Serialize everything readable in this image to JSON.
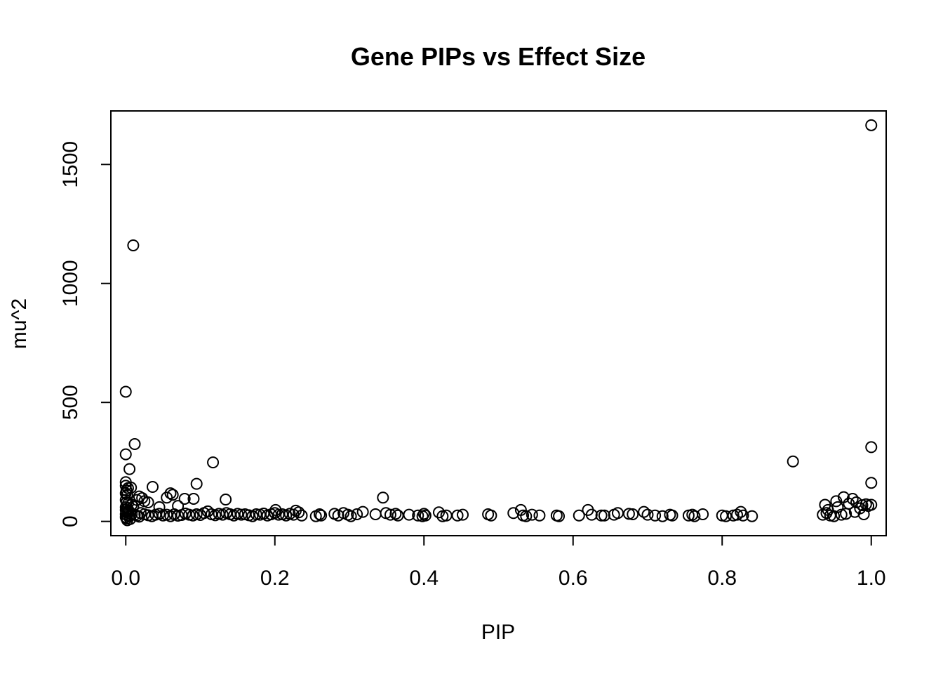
{
  "chart_data": {
    "type": "scatter",
    "title": "Gene PIPs vs Effect Size",
    "xlabel": "PIP",
    "ylabel": "mu^2",
    "xlim": [
      -0.02,
      1.02
    ],
    "ylim": [
      -60,
      1725
    ],
    "x_ticks": [
      {
        "value": 0.0,
        "label": "0.0"
      },
      {
        "value": 0.2,
        "label": "0.2"
      },
      {
        "value": 0.4,
        "label": "0.4"
      },
      {
        "value": 0.6,
        "label": "0.6"
      },
      {
        "value": 0.8,
        "label": "0.8"
      },
      {
        "value": 1.0,
        "label": "1.0"
      }
    ],
    "y_ticks": [
      {
        "value": 0,
        "label": "0"
      },
      {
        "value": 500,
        "label": "500"
      },
      {
        "value": 1000,
        "label": "1000"
      },
      {
        "value": 1500,
        "label": "1500"
      }
    ],
    "grid": false,
    "legend": "none",
    "marker": "open-circle",
    "points": [
      [
        0.0,
        545
      ],
      [
        0.01,
        1160
      ],
      [
        0.0,
        282
      ],
      [
        0.012,
        325
      ],
      [
        0.005,
        220
      ],
      [
        0.117,
        248
      ],
      [
        0.0,
        165
      ],
      [
        0.0,
        150
      ],
      [
        0.003,
        140
      ],
      [
        0.007,
        142
      ],
      [
        0.001,
        130
      ],
      [
        0.0,
        118
      ],
      [
        0.002,
        112
      ],
      [
        0.036,
        145
      ],
      [
        0.095,
        158
      ],
      [
        0.06,
        118
      ],
      [
        0.063,
        112
      ],
      [
        0.055,
        100
      ],
      [
        0.018,
        105
      ],
      [
        0.022,
        98
      ],
      [
        0.079,
        95
      ],
      [
        0.091,
        95
      ],
      [
        0.134,
        92
      ],
      [
        0.015,
        90
      ],
      [
        0.025,
        85
      ],
      [
        0.0,
        90
      ],
      [
        0.001,
        80
      ],
      [
        0.003,
        75
      ],
      [
        0.03,
        80
      ],
      [
        0.045,
        60
      ],
      [
        0.07,
        65
      ],
      [
        0.008,
        70
      ],
      [
        0.01,
        62
      ],
      [
        0.0,
        60
      ],
      [
        0.002,
        55
      ],
      [
        0.0,
        48
      ],
      [
        0.004,
        45
      ],
      [
        0.001,
        40
      ],
      [
        0.003,
        35
      ],
      [
        0.0,
        30
      ],
      [
        0.002,
        25
      ],
      [
        0.005,
        22
      ],
      [
        0.0,
        18
      ],
      [
        0.001,
        12
      ],
      [
        0.006,
        10
      ],
      [
        0.002,
        5
      ],
      [
        0.008,
        30
      ],
      [
        0.012,
        28
      ],
      [
        0.015,
        24
      ],
      [
        0.018,
        20
      ],
      [
        0.02,
        35
      ],
      [
        0.025,
        30
      ],
      [
        0.03,
        26
      ],
      [
        0.035,
        22
      ],
      [
        0.04,
        28
      ],
      [
        0.045,
        32
      ],
      [
        0.05,
        25
      ],
      [
        0.055,
        28
      ],
      [
        0.06,
        22
      ],
      [
        0.065,
        30
      ],
      [
        0.07,
        24
      ],
      [
        0.075,
        27
      ],
      [
        0.08,
        33
      ],
      [
        0.085,
        28
      ],
      [
        0.09,
        25
      ],
      [
        0.095,
        30
      ],
      [
        0.1,
        27
      ],
      [
        0.105,
        35
      ],
      [
        0.11,
        42
      ],
      [
        0.115,
        30
      ],
      [
        0.12,
        26
      ],
      [
        0.125,
        32
      ],
      [
        0.13,
        28
      ],
      [
        0.135,
        35
      ],
      [
        0.14,
        30
      ],
      [
        0.145,
        25
      ],
      [
        0.15,
        32
      ],
      [
        0.155,
        28
      ],
      [
        0.16,
        30
      ],
      [
        0.165,
        26
      ],
      [
        0.17,
        22
      ],
      [
        0.175,
        30
      ],
      [
        0.18,
        28
      ],
      [
        0.185,
        33
      ],
      [
        0.19,
        25
      ],
      [
        0.195,
        30
      ],
      [
        0.2,
        35
      ],
      [
        0.201,
        48
      ],
      [
        0.205,
        28
      ],
      [
        0.21,
        30
      ],
      [
        0.215,
        25
      ],
      [
        0.22,
        32
      ],
      [
        0.225,
        28
      ],
      [
        0.228,
        45
      ],
      [
        0.232,
        38
      ],
      [
        0.236,
        25
      ],
      [
        0.255,
        22
      ],
      [
        0.26,
        30
      ],
      [
        0.262,
        25
      ],
      [
        0.28,
        32
      ],
      [
        0.285,
        25
      ],
      [
        0.292,
        35
      ],
      [
        0.298,
        28
      ],
      [
        0.302,
        22
      ],
      [
        0.31,
        30
      ],
      [
        0.318,
        40
      ],
      [
        0.335,
        30
      ],
      [
        0.345,
        100
      ],
      [
        0.349,
        35
      ],
      [
        0.355,
        28
      ],
      [
        0.362,
        32
      ],
      [
        0.365,
        25
      ],
      [
        0.38,
        28
      ],
      [
        0.392,
        25
      ],
      [
        0.398,
        22
      ],
      [
        0.4,
        32
      ],
      [
        0.402,
        25
      ],
      [
        0.42,
        38
      ],
      [
        0.425,
        22
      ],
      [
        0.43,
        25
      ],
      [
        0.445,
        25
      ],
      [
        0.452,
        28
      ],
      [
        0.486,
        30
      ],
      [
        0.49,
        25
      ],
      [
        0.52,
        35
      ],
      [
        0.53,
        48
      ],
      [
        0.533,
        25
      ],
      [
        0.537,
        22
      ],
      [
        0.545,
        28
      ],
      [
        0.555,
        25
      ],
      [
        0.578,
        25
      ],
      [
        0.581,
        22
      ],
      [
        0.608,
        25
      ],
      [
        0.62,
        48
      ],
      [
        0.625,
        28
      ],
      [
        0.638,
        25
      ],
      [
        0.642,
        25
      ],
      [
        0.655,
        28
      ],
      [
        0.66,
        35
      ],
      [
        0.675,
        32
      ],
      [
        0.68,
        30
      ],
      [
        0.695,
        40
      ],
      [
        0.7,
        28
      ],
      [
        0.71,
        25
      ],
      [
        0.72,
        22
      ],
      [
        0.73,
        28
      ],
      [
        0.733,
        25
      ],
      [
        0.755,
        25
      ],
      [
        0.76,
        28
      ],
      [
        0.763,
        22
      ],
      [
        0.774,
        30
      ],
      [
        0.8,
        25
      ],
      [
        0.805,
        22
      ],
      [
        0.815,
        25
      ],
      [
        0.82,
        28
      ],
      [
        0.825,
        40
      ],
      [
        0.828,
        25
      ],
      [
        0.84,
        22
      ],
      [
        0.895,
        252
      ],
      [
        0.935,
        28
      ],
      [
        0.938,
        70
      ],
      [
        0.94,
        35
      ],
      [
        0.942,
        48
      ],
      [
        0.945,
        25
      ],
      [
        0.95,
        22
      ],
      [
        0.953,
        85
      ],
      [
        0.955,
        60
      ],
      [
        0.96,
        28
      ],
      [
        0.963,
        102
      ],
      [
        0.966,
        32
      ],
      [
        0.97,
        75
      ],
      [
        0.975,
        95
      ],
      [
        0.978,
        40
      ],
      [
        0.98,
        80
      ],
      [
        0.985,
        55
      ],
      [
        0.988,
        68
      ],
      [
        0.99,
        30
      ],
      [
        0.993,
        72
      ],
      [
        0.996,
        65
      ],
      [
        1.0,
        70
      ],
      [
        1.0,
        162
      ],
      [
        1.0,
        312
      ],
      [
        1.0,
        1665
      ]
    ]
  }
}
